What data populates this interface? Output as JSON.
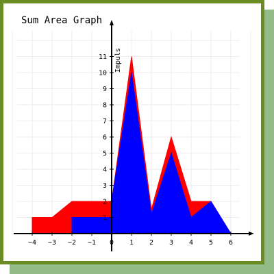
{
  "chart_data": {
    "type": "area",
    "stacked": true,
    "title": "Sum Area Graph",
    "xlabel": "",
    "ylabel": "Impuls",
    "xlim": [
      -4,
      7
    ],
    "ylim": [
      0,
      12
    ],
    "grid": true,
    "x_ticks": [
      -4,
      -3,
      -2,
      -1,
      0,
      1,
      2,
      3,
      4,
      5,
      6
    ],
    "y_ticks": [
      1,
      2,
      3,
      4,
      5,
      6,
      7,
      8,
      9,
      10,
      11
    ],
    "series": [
      {
        "color": "#0000ff",
        "points": [
          [
            -2,
            1
          ],
          [
            -1,
            1
          ],
          [
            0,
            1
          ],
          [
            0,
            2
          ],
          [
            1,
            10
          ],
          [
            2,
            1.2
          ],
          [
            3,
            5
          ],
          [
            4,
            1
          ],
          [
            5,
            2
          ],
          [
            6,
            0
          ]
        ]
      },
      {
        "color": "#ff0000",
        "points": [
          [
            -4,
            1
          ],
          [
            -3,
            1
          ],
          [
            -2,
            2
          ],
          [
            -1,
            2
          ],
          [
            0,
            2
          ],
          [
            1,
            11
          ],
          [
            2,
            1.5
          ],
          [
            3,
            6
          ],
          [
            4,
            2
          ],
          [
            5,
            2
          ],
          [
            6,
            0
          ]
        ]
      }
    ],
    "colors": {
      "frame": "#6b8b25",
      "shadow": "#93bb87",
      "grid": "#eeeeee",
      "axis": "#000000"
    }
  }
}
